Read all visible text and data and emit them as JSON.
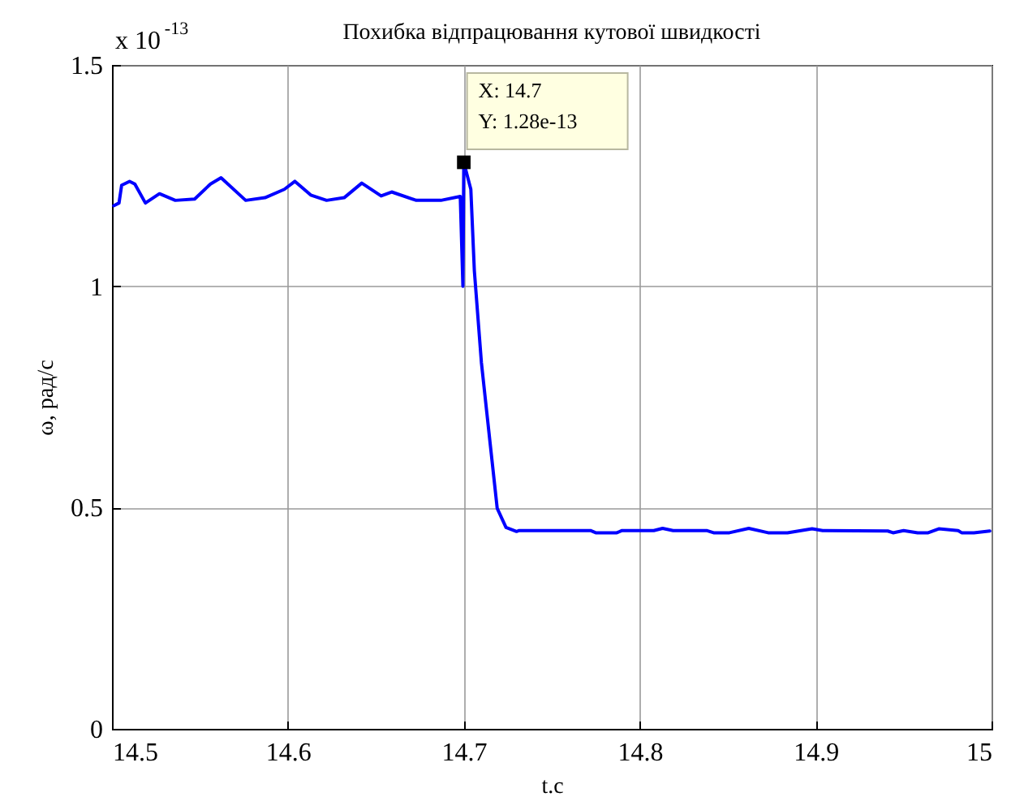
{
  "chart_data": {
    "type": "line",
    "title": "Похибка відпрацювання кутової швидкості",
    "xlabel": "t.c",
    "ylabel": "ω, рад/с",
    "annotations": [
      "x 10$^{-13}$",
      {
        "text": "X: 14.7\nY: 1.28e-13",
        "x": 14.7,
        "y": 1.28
      }
    ],
    "x": [
      14.501,
      14.504,
      14.5055,
      14.51,
      14.513,
      14.519,
      14.527,
      14.536,
      14.547,
      14.556,
      14.562,
      14.576,
      14.587,
      14.598,
      14.604,
      14.613,
      14.622,
      14.632,
      14.642,
      14.653,
      14.659,
      14.673,
      14.687,
      14.698,
      14.6995,
      14.7,
      14.704,
      14.706,
      14.71,
      14.715,
      14.719,
      14.724,
      14.73,
      14.7315,
      14.772,
      14.775,
      14.787,
      14.79,
      14.808,
      14.813,
      14.819,
      14.838,
      14.842,
      14.851,
      14.862,
      14.873,
      14.884,
      14.898,
      14.904,
      14.941,
      14.944,
      14.95,
      14.958,
      14.964,
      14.97,
      14.981,
      14.983,
      14.99,
      14.999
    ],
    "series": [
      {
        "color": "#0000ff",
        "values": [
          1.182,
          1.188,
          1.228,
          1.237,
          1.231,
          1.188,
          1.209,
          1.194,
          1.197,
          1.231,
          1.245,
          1.194,
          1.2,
          1.219,
          1.237,
          1.206,
          1.194,
          1.2,
          1.233,
          1.204,
          1.213,
          1.194,
          1.194,
          1.203,
          1.0,
          1.28,
          1.219,
          1.035,
          0.828,
          0.644,
          0.498,
          0.455,
          0.446,
          0.448,
          0.448,
          0.443,
          0.443,
          0.448,
          0.448,
          0.453,
          0.448,
          0.448,
          0.443,
          0.443,
          0.453,
          0.443,
          0.443,
          0.452,
          0.448,
          0.447,
          0.443,
          0.448,
          0.443,
          0.443,
          0.452,
          0.448,
          0.443,
          0.443,
          0.447
        ]
      }
    ],
    "xlim": [
      14.5,
      15
    ],
    "xticks": [
      14.5,
      14.6,
      14.7,
      14.8,
      14.9,
      15
    ],
    "ylim": [
      0,
      1.5
    ],
    "yticks": [
      0,
      0.5,
      1,
      1.5
    ],
    "grid": true,
    "marker": "none",
    "line_style": "solid"
  }
}
